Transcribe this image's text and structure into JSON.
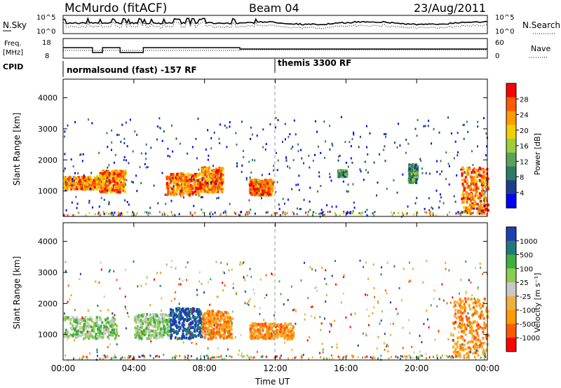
{
  "header": {
    "station": "McMurdo (fitACF)",
    "beam": "Beam 04",
    "date": "23/Aug/2011"
  },
  "chart_data": [
    {
      "type": "line",
      "panel": "noise",
      "left_label": "N.Sky",
      "right_label": "N.Search",
      "left_ticks": [
        "10^5",
        "10^0"
      ],
      "right_ticks": [
        "10^5",
        "10^0"
      ],
      "series": [
        {
          "name": "N.Sky",
          "style": "solid"
        },
        {
          "name": "N.Search",
          "style": "dotted"
        }
      ]
    },
    {
      "type": "line",
      "panel": "frequency",
      "left_label_top": "Freq.",
      "left_label_bottom": "[MHz]",
      "right_label": "Nave",
      "left_ticks": [
        "18",
        "8"
      ],
      "right_ticks": [
        "60",
        "0"
      ],
      "series": [
        {
          "name": "Freq.",
          "style": "solid"
        },
        {
          "name": "Nave",
          "style": "dotted"
        }
      ]
    },
    {
      "type": "annotation",
      "panel": "cpid",
      "label": "CPID",
      "segments": [
        {
          "text": "normalsound (fast) -157 RF",
          "start_hour": 0
        },
        {
          "text": "themis 3300 RF",
          "start_hour": 12
        }
      ]
    },
    {
      "type": "heatmap",
      "panel": "power",
      "ylabel": "Slant Range [km]",
      "ylim": [
        180,
        4600
      ],
      "yticks": [
        1000,
        2000,
        3000,
        4000
      ],
      "colorbar_label": "Power [dB]",
      "colorbar_ticks": [
        "28",
        "24",
        "20",
        "16",
        "12",
        "8",
        "4"
      ],
      "colors": [
        "#0000ff",
        "#1c3f8c",
        "#2f7a63",
        "#5aa35a",
        "#9ccd3c",
        "#f0d000",
        "#ff9a00",
        "#ff5a00",
        "#ff0000"
      ],
      "regions": [
        {
          "x": [
            0.0,
            2.0
          ],
          "y": [
            1100,
            1500
          ],
          "level": "high"
        },
        {
          "x": [
            2.0,
            3.5
          ],
          "y": [
            1000,
            1700
          ],
          "level": "high"
        },
        {
          "x": [
            5.8,
            7.8
          ],
          "y": [
            900,
            1600
          ],
          "level": "high"
        },
        {
          "x": [
            7.8,
            9.0
          ],
          "y": [
            1000,
            1800
          ],
          "level": "high"
        },
        {
          "x": [
            10.5,
            11.8
          ],
          "y": [
            900,
            1400
          ],
          "level": "high"
        },
        {
          "x": [
            15.5,
            16.0
          ],
          "y": [
            1500,
            1700
          ],
          "level": "medium"
        },
        {
          "x": [
            19.5,
            20.0
          ],
          "y": [
            1300,
            1900
          ],
          "level": "medium"
        },
        {
          "x": [
            22.5,
            24.0
          ],
          "y": [
            300,
            1800
          ],
          "level": "high"
        }
      ]
    },
    {
      "type": "heatmap",
      "panel": "velocity",
      "ylabel": "Slant Range [km]",
      "ylim": [
        180,
        4600
      ],
      "yticks": [
        1000,
        2000,
        3000,
        4000
      ],
      "colorbar_label": "Velocity [m s⁻¹]",
      "colorbar_ticks": [
        "1000",
        "500",
        "100",
        "25",
        "-25",
        "-100",
        "-500",
        "-1000"
      ],
      "colors": [
        "#ff0000",
        "#ff5a00",
        "#ff9a00",
        "#f0b040",
        "#c8c8c8",
        "#8ccd50",
        "#3fae3f",
        "#1f7a7a",
        "#1c3fb4"
      ],
      "regions": [
        {
          "x": [
            0.0,
            3.0
          ],
          "y": [
            900,
            1600
          ],
          "level": "green"
        },
        {
          "x": [
            4.0,
            6.0
          ],
          "y": [
            900,
            1700
          ],
          "level": "green"
        },
        {
          "x": [
            6.0,
            7.8
          ],
          "y": [
            900,
            1900
          ],
          "level": "blue"
        },
        {
          "x": [
            7.8,
            9.5
          ],
          "y": [
            900,
            1800
          ],
          "level": "orange"
        },
        {
          "x": [
            10.5,
            13.0
          ],
          "y": [
            900,
            1400
          ],
          "level": "orange"
        },
        {
          "x": [
            22.0,
            24.0
          ],
          "y": [
            300,
            2200
          ],
          "level": "orange"
        }
      ]
    }
  ],
  "xaxis": {
    "xlabel": "Time UT",
    "xlim": [
      0,
      24
    ],
    "xticks": [
      "00:00",
      "04:00",
      "08:00",
      "12:00",
      "16:00",
      "20:00",
      "00:00"
    ]
  }
}
